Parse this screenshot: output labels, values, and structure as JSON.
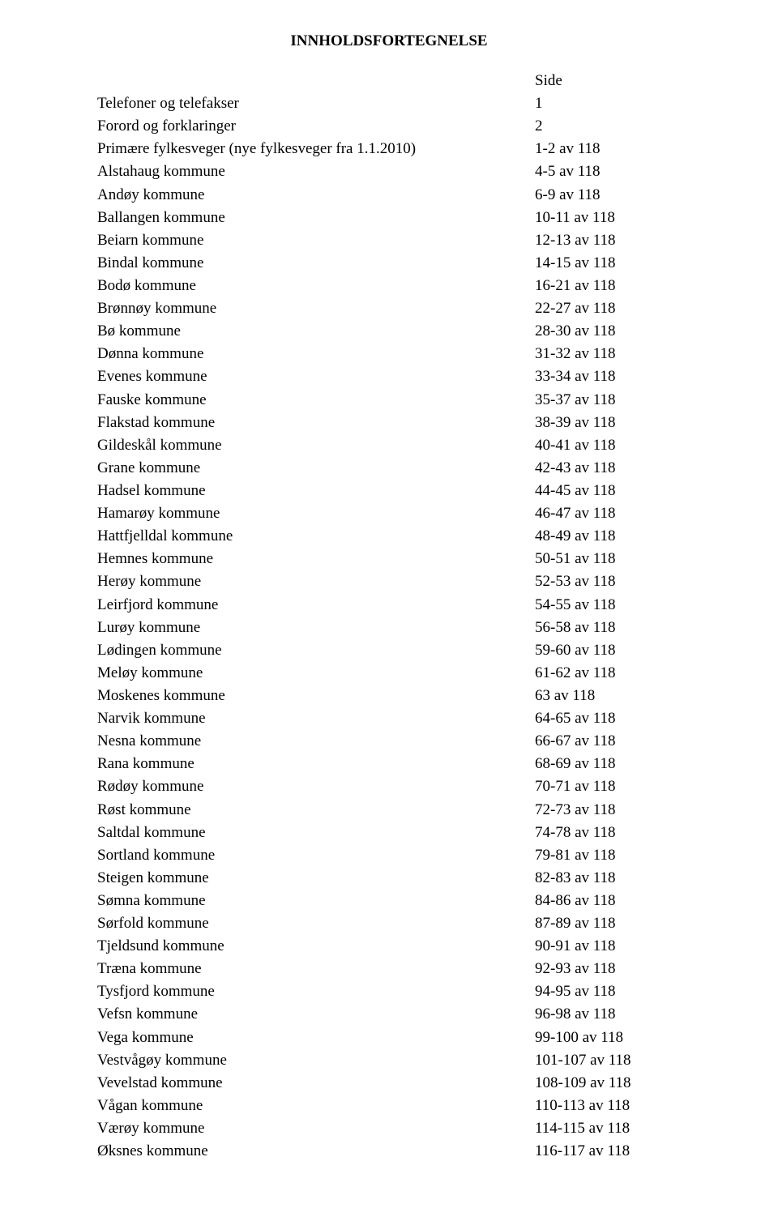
{
  "title": "INNHOLDSFORTEGNELSE",
  "sideLabel": "Side",
  "rows": [
    {
      "label": "Telefoner og telefakser",
      "page": "1"
    },
    {
      "label": "Forord og forklaringer",
      "page": "2"
    },
    {
      "label": "Primære fylkesveger (nye fylkesveger fra 1.1.2010)",
      "page": "1-2 av 118"
    },
    {
      "label": "Alstahaug kommune",
      "page": "4-5 av 118"
    },
    {
      "label": "Andøy kommune",
      "page": "6-9 av 118"
    },
    {
      "label": "Ballangen kommune",
      "page": "10-11 av 118"
    },
    {
      "label": "Beiarn kommune",
      "page": "12-13 av 118"
    },
    {
      "label": "Bindal kommune",
      "page": "14-15 av 118"
    },
    {
      "label": "Bodø kommune",
      "page": "16-21 av 118"
    },
    {
      "label": "Brønnøy kommune",
      "page": "22-27 av 118"
    },
    {
      "label": "Bø kommune",
      "page": "28-30 av 118"
    },
    {
      "label": "Dønna kommune",
      "page": "31-32 av 118"
    },
    {
      "label": "Evenes kommune",
      "page": "33-34 av 118"
    },
    {
      "label": "Fauske kommune",
      "page": "35-37 av 118"
    },
    {
      "label": "Flakstad kommune",
      "page": "38-39 av 118"
    },
    {
      "label": "Gildeskål kommune",
      "page": "40-41 av 118"
    },
    {
      "label": "Grane kommune",
      "page": "42-43 av 118"
    },
    {
      "label": "Hadsel kommune",
      "page": "44-45 av 118"
    },
    {
      "label": "Hamarøy kommune",
      "page": "46-47 av 118"
    },
    {
      "label": "Hattfjelldal kommune",
      "page": "48-49 av 118"
    },
    {
      "label": "Hemnes kommune",
      "page": "50-51 av 118"
    },
    {
      "label": "Herøy kommune",
      "page": "52-53 av 118"
    },
    {
      "label": "Leirfjord kommune",
      "page": "54-55 av 118"
    },
    {
      "label": "Lurøy kommune",
      "page": "56-58 av 118"
    },
    {
      "label": "Lødingen kommune",
      "page": "59-60 av 118"
    },
    {
      "label": "Meløy kommune",
      "page": "61-62 av 118"
    },
    {
      "label": "Moskenes kommune",
      "page": "63 av 118"
    },
    {
      "label": "Narvik kommune",
      "page": "64-65 av 118"
    },
    {
      "label": "Nesna kommune",
      "page": "66-67 av 118"
    },
    {
      "label": "Rana kommune",
      "page": "68-69 av 118"
    },
    {
      "label": "Rødøy kommune",
      "page": "70-71 av 118"
    },
    {
      "label": "Røst kommune",
      "page": "72-73 av 118"
    },
    {
      "label": "Saltdal kommune",
      "page": "74-78 av 118"
    },
    {
      "label": "Sortland kommune",
      "page": "79-81 av 118"
    },
    {
      "label": "Steigen kommune",
      "page": "82-83 av 118"
    },
    {
      "label": "Sømna kommune",
      "page": "84-86 av 118"
    },
    {
      "label": "Sørfold kommune",
      "page": "87-89 av 118"
    },
    {
      "label": "Tjeldsund kommune",
      "page": "90-91 av 118"
    },
    {
      "label": "Træna kommune",
      "page": "92-93 av 118"
    },
    {
      "label": "Tysfjord kommune",
      "page": "94-95 av 118"
    },
    {
      "label": "Vefsn kommune",
      "page": "96-98 av 118"
    },
    {
      "label": "Vega kommune",
      "page": "99-100 av 118"
    },
    {
      "label": "Vestvågøy kommune",
      "page": "101-107 av 118"
    },
    {
      "label": "Vevelstad kommune",
      "page": "108-109 av 118"
    },
    {
      "label": "Vågan kommune",
      "page": "110-113 av 118"
    },
    {
      "label": "Værøy kommune",
      "page": "114-115 av 118"
    },
    {
      "label": "Øksnes kommune",
      "page": "116-117 av 118"
    }
  ],
  "style": {
    "background_color": "#ffffff",
    "text_color": "#000000",
    "font_family": "Times New Roman",
    "title_fontsize": 19,
    "body_fontsize": 19,
    "line_height": 1.48
  }
}
